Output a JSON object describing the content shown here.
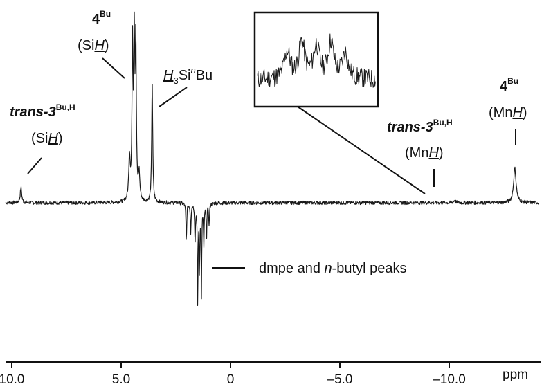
{
  "chart_data": {
    "type": "line",
    "xlabel": "ppm",
    "ylabel": "",
    "xlim": [
      10.0,
      -13.5
    ],
    "x_reversed": true,
    "grid": false,
    "ticks": [
      {
        "v": 10.0,
        "label": "10.0"
      },
      {
        "v": 5.0,
        "label": "5.0"
      },
      {
        "v": 0,
        "label": "0"
      },
      {
        "v": -5.0,
        "label": "–5.0"
      },
      {
        "v": -10.0,
        "label": "–10.0"
      }
    ],
    "peaks": [
      {
        "ppm": 9.58,
        "intensity": 0.22,
        "width": 0.04,
        "kind": "positive",
        "assignment": "trans-3 SiH"
      },
      {
        "ppm": 4.62,
        "intensity": 0.62,
        "width": 0.04,
        "kind": "positive",
        "assignment": "4 SiH (shoulder)"
      },
      {
        "ppm": 4.48,
        "intensity": 2.2,
        "width": 0.028,
        "kind": "positive",
        "assignment": "4 SiH"
      },
      {
        "ppm": 4.4,
        "intensity": 2.2,
        "width": 0.028,
        "kind": "positive",
        "assignment": "4 SiH"
      },
      {
        "ppm": 4.33,
        "intensity": 2.2,
        "width": 0.028,
        "kind": "positive",
        "assignment": "4 SiH"
      },
      {
        "ppm": 4.18,
        "intensity": 0.38,
        "width": 0.04,
        "kind": "positive",
        "assignment": "4 SiH (shoulder)"
      },
      {
        "ppm": 3.58,
        "intensity": 1.75,
        "width": 0.028,
        "kind": "positive",
        "assignment": "H3SinBu"
      },
      {
        "ppm": 2.02,
        "intensity": -0.57,
        "width": 0.02,
        "kind": "negative",
        "assignment": "dmpe"
      },
      {
        "ppm": 1.82,
        "intensity": -0.42,
        "width": 0.02,
        "kind": "negative",
        "assignment": "dmpe"
      },
      {
        "ppm": 1.62,
        "intensity": -0.55,
        "width": 0.02,
        "kind": "negative",
        "assignment": "n-butyl"
      },
      {
        "ppm": 1.5,
        "intensity": -1.45,
        "width": 0.018,
        "kind": "negative",
        "assignment": "n-butyl"
      },
      {
        "ppm": 1.42,
        "intensity": -0.95,
        "width": 0.018,
        "kind": "negative",
        "assignment": "n-butyl"
      },
      {
        "ppm": 1.33,
        "intensity": -1.3,
        "width": 0.018,
        "kind": "negative",
        "assignment": "n-butyl"
      },
      {
        "ppm": 1.22,
        "intensity": -0.6,
        "width": 0.018,
        "kind": "negative",
        "assignment": "n-butyl"
      },
      {
        "ppm": 1.1,
        "intensity": -0.55,
        "width": 0.018,
        "kind": "negative",
        "assignment": "n-butyl"
      },
      {
        "ppm": 0.98,
        "intensity": -0.32,
        "width": 0.02,
        "kind": "negative",
        "assignment": "n-butyl"
      },
      {
        "ppm": -10.25,
        "intensity": 0.035,
        "width": 0.05,
        "kind": "positive",
        "assignment": "trans-3 MnH"
      },
      {
        "ppm": -13.0,
        "intensity": 0.5,
        "width": 0.07,
        "kind": "positive",
        "assignment": "4 MnH"
      }
    ],
    "inset": {
      "description_values": [
        {
          "offset": -0.05,
          "intensity": 0.75
        },
        {
          "offset": -0.025,
          "intensity": 1.0
        },
        {
          "offset": 0.0,
          "intensity": 0.9
        },
        {
          "offset": 0.025,
          "intensity": 1.0
        },
        {
          "offset": 0.05,
          "intensity": 0.7
        }
      ],
      "region_ppm": -10.25
    },
    "annotations": [
      {
        "id": "si-h-trans3",
        "compound": "trans-3",
        "superscript": "Bu,H",
        "group": "(Si",
        "group_h": "H",
        "group_close": ")"
      },
      {
        "id": "si-h-4",
        "compound": "4",
        "superscript": "Bu",
        "group": "(Si",
        "group_h": "H",
        "group_close": ")"
      },
      {
        "id": "h3si-nbu",
        "prefix_h": "H",
        "prefix_sub": "3",
        "mid": "Si",
        "mid_sup": "n",
        "suffix": "Bu"
      },
      {
        "id": "mn-h-trans3",
        "compound": "trans-3",
        "superscript": "Bu,H",
        "group": "(Mn",
        "group_h": "H",
        "group_close": ")"
      },
      {
        "id": "mn-h-4",
        "compound": "4",
        "superscript": "Bu",
        "group": "(Mn",
        "group_h": "H",
        "group_close": ")"
      },
      {
        "id": "dmpe-butyl",
        "text_before": "dmpe and ",
        "text_italic": "n",
        "text_after": "-butyl peaks"
      }
    ],
    "colors": {
      "trace": "#1a1a1a",
      "axis": "#111111"
    }
  }
}
